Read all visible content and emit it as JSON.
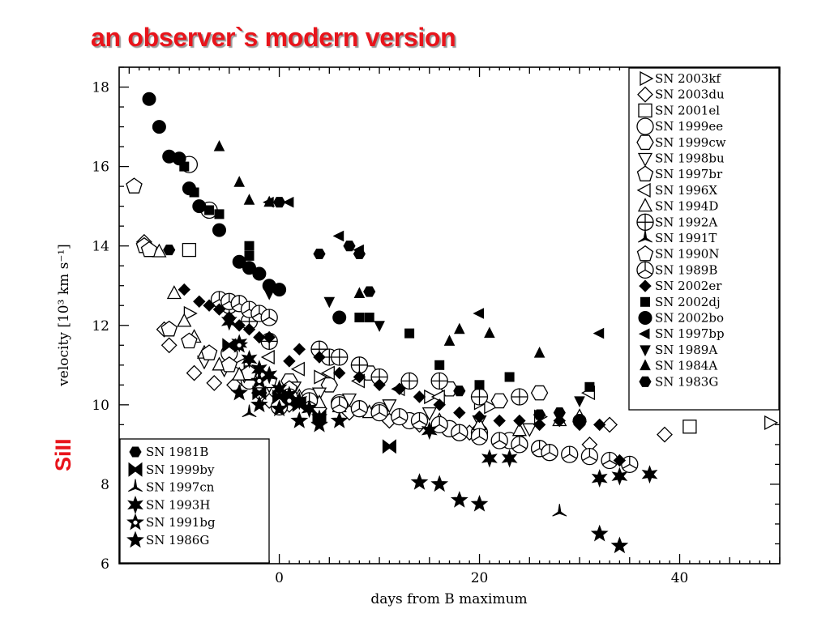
{
  "slide_title": "an observer`s modern version",
  "si_label": "SiII",
  "chart_data": {
    "type": "scatter",
    "xlabel": "days from B maximum",
    "ylabel": "velocity [10³ km s⁻¹]",
    "xlim": [
      -16,
      50
    ],
    "ylim": [
      6,
      18.5
    ],
    "x_ticks": [
      0,
      20,
      40
    ],
    "y_ticks": [
      6,
      8,
      10,
      12,
      14,
      16,
      18
    ],
    "grid": false,
    "legend_placement": [
      "top-right",
      "bottom-left"
    ],
    "series": [
      {
        "name": "SN 2003kf",
        "marker": "triangle-right-open",
        "legend": "right",
        "points": [
          [
            -9,
            12.3
          ],
          [
            4,
            10.7
          ],
          [
            15,
            10.2
          ],
          [
            20,
            10.05
          ],
          [
            21,
            9.95
          ],
          [
            26,
            9.7
          ],
          [
            49,
            9.55
          ]
        ]
      },
      {
        "name": "SN 2003du",
        "marker": "diamond-open",
        "legend": "right",
        "points": [
          [
            -13.5,
            14.1
          ],
          [
            -11.5,
            11.9
          ],
          [
            -11,
            11.5
          ],
          [
            -8.5,
            10.8
          ],
          [
            -6.5,
            10.55
          ],
          [
            -4.5,
            10.5
          ],
          [
            -2,
            10.3
          ],
          [
            -1,
            10.1
          ],
          [
            1,
            10.0
          ],
          [
            4,
            9.9
          ],
          [
            7,
            9.8
          ],
          [
            11,
            9.6
          ],
          [
            14,
            9.5
          ],
          [
            19,
            9.3
          ],
          [
            24,
            9.1
          ],
          [
            31,
            9.0
          ],
          [
            33,
            9.5
          ],
          [
            38.5,
            9.25
          ]
        ]
      },
      {
        "name": "SN 2001el",
        "marker": "square-open",
        "legend": "right",
        "points": [
          [
            -9,
            13.9
          ],
          [
            41,
            9.45
          ]
        ]
      },
      {
        "name": "SN 1999ee",
        "marker": "circle-open",
        "legend": "right",
        "points": [
          [
            -9,
            16.05
          ],
          [
            -7,
            14.9
          ],
          [
            -5,
            11.3
          ],
          [
            -3,
            10.6
          ],
          [
            0,
            9.95
          ],
          [
            3,
            10.2
          ],
          [
            6,
            10.05
          ],
          [
            10,
            9.85
          ],
          [
            13,
            9.6
          ],
          [
            17,
            9.4
          ],
          [
            20,
            9.3
          ],
          [
            23,
            9.1
          ],
          [
            26,
            8.9
          ]
        ]
      },
      {
        "name": "SN 1999cw",
        "marker": "hexagon-open",
        "legend": "right",
        "points": [
          [
            -3,
            10.8
          ],
          [
            1,
            10.6
          ],
          [
            5,
            10.5
          ],
          [
            9,
            10.8
          ],
          [
            13,
            10.6
          ],
          [
            17,
            10.4
          ],
          [
            22,
            10.1
          ],
          [
            26,
            10.3
          ]
        ]
      },
      {
        "name": "SN 1998bu",
        "marker": "triangle-down-open",
        "legend": "right",
        "points": [
          [
            -7.5,
            11.1
          ],
          [
            -5.5,
            10.9
          ],
          [
            -3.5,
            10.75
          ],
          [
            -1,
            10.5
          ],
          [
            1.5,
            10.45
          ],
          [
            4,
            10.3
          ],
          [
            7,
            10.15
          ],
          [
            11,
            10.0
          ],
          [
            15,
            9.8
          ],
          [
            20,
            9.6
          ],
          [
            25,
            9.4
          ]
        ]
      },
      {
        "name": "SN 1997br",
        "marker": "pentagon-open",
        "legend": "right",
        "points": [
          [
            -14.5,
            15.5
          ],
          [
            -13.5,
            14.0
          ]
        ]
      },
      {
        "name": "SN 1996X",
        "marker": "triangle-left-open",
        "legend": "right",
        "points": [
          [
            -4,
            11.0
          ],
          [
            -1,
            11.2
          ],
          [
            2,
            10.9
          ],
          [
            5,
            10.8
          ],
          [
            8,
            10.6
          ],
          [
            12,
            10.4
          ],
          [
            16,
            10.2
          ],
          [
            31,
            10.3
          ]
        ]
      },
      {
        "name": "SN 1994D",
        "marker": "triangle-up-open",
        "legend": "right",
        "points": [
          [
            -12,
            13.85
          ],
          [
            -10.5,
            12.8
          ],
          [
            -9.5,
            12.1
          ],
          [
            -8.5,
            11.7
          ],
          [
            -7.5,
            11.3
          ],
          [
            -6,
            11.0
          ],
          [
            -4,
            10.75
          ],
          [
            -2,
            10.55
          ],
          [
            0,
            10.35
          ],
          [
            2,
            10.2
          ],
          [
            4,
            10.05
          ],
          [
            6,
            9.95
          ],
          [
            9,
            9.8
          ],
          [
            12,
            9.7
          ],
          [
            16,
            9.6
          ],
          [
            20,
            9.5
          ],
          [
            24,
            9.35
          ],
          [
            28,
            9.6
          ],
          [
            30,
            9.7
          ]
        ]
      },
      {
        "name": "SN 1992A",
        "marker": "circle-plus",
        "legend": "right",
        "points": [
          [
            -5,
            12.5
          ],
          [
            -3,
            12.1
          ],
          [
            -1,
            11.6
          ],
          [
            4,
            11.4
          ],
          [
            5,
            11.2
          ],
          [
            6,
            11.2
          ],
          [
            8,
            11.0
          ],
          [
            10,
            10.7
          ],
          [
            13,
            10.6
          ],
          [
            16,
            10.6
          ],
          [
            20,
            10.2
          ],
          [
            24,
            10.2
          ]
        ]
      },
      {
        "name": "SN 1991T",
        "marker": "tri-star",
        "legend": "right",
        "points": [
          [
            -3,
            9.8
          ]
        ]
      },
      {
        "name": "SN 1990N",
        "marker": "pentagon-open",
        "legend": "right",
        "points": [
          [
            -13,
            13.9
          ],
          [
            -11,
            11.9
          ],
          [
            -9,
            11.6
          ],
          [
            -7,
            11.3
          ],
          [
            -5,
            11.0
          ],
          [
            -3,
            10.8
          ],
          [
            -1,
            10.6
          ],
          [
            1,
            10.4
          ]
        ]
      },
      {
        "name": "SN 1989B",
        "marker": "peace",
        "legend": "right",
        "points": [
          [
            -6,
            12.65
          ],
          [
            -5,
            12.6
          ],
          [
            -4,
            12.55
          ],
          [
            -3,
            12.4
          ],
          [
            -2,
            12.3
          ],
          [
            -1,
            12.2
          ],
          [
            1,
            10.2
          ],
          [
            3,
            10.1
          ],
          [
            6,
            10.0
          ],
          [
            8,
            9.9
          ],
          [
            10,
            9.8
          ],
          [
            12,
            9.7
          ],
          [
            14,
            9.6
          ],
          [
            16,
            9.5
          ],
          [
            18,
            9.3
          ],
          [
            20,
            9.2
          ],
          [
            22,
            9.1
          ],
          [
            24,
            9.0
          ],
          [
            26,
            8.9
          ],
          [
            27,
            8.8
          ],
          [
            29,
            8.75
          ],
          [
            31,
            8.7
          ],
          [
            33,
            8.6
          ],
          [
            35,
            8.5
          ]
        ]
      },
      {
        "name": "SN 2002er",
        "marker": "diamond-filled",
        "legend": "right",
        "points": [
          [
            -9.5,
            12.9
          ],
          [
            -8,
            12.6
          ],
          [
            -7,
            12.5
          ],
          [
            -6,
            12.4
          ],
          [
            -5,
            12.2
          ],
          [
            -4,
            12.0
          ],
          [
            -3,
            11.9
          ],
          [
            -2,
            11.7
          ],
          [
            -1,
            11.7
          ],
          [
            1,
            11.1
          ],
          [
            2,
            11.4
          ],
          [
            4,
            11.2
          ],
          [
            6,
            10.8
          ],
          [
            8,
            10.7
          ],
          [
            10,
            10.5
          ],
          [
            12,
            10.4
          ],
          [
            14,
            10.2
          ],
          [
            16,
            10.0
          ],
          [
            18,
            9.8
          ],
          [
            20,
            9.7
          ],
          [
            22,
            9.6
          ],
          [
            24,
            9.6
          ],
          [
            26,
            9.5
          ],
          [
            28,
            9.6
          ],
          [
            30,
            9.5
          ],
          [
            32,
            9.5
          ],
          [
            34,
            8.6
          ]
        ]
      },
      {
        "name": "SN 2002dj",
        "marker": "square-filled",
        "legend": "right",
        "points": [
          [
            -10,
            16.2
          ],
          [
            -9.5,
            16.0
          ],
          [
            -8.5,
            15.35
          ],
          [
            -7,
            14.9
          ],
          [
            -6,
            14.8
          ],
          [
            -3,
            14.0
          ],
          [
            -3,
            13.75
          ],
          [
            8,
            12.2
          ],
          [
            9,
            12.2
          ],
          [
            13,
            11.8
          ],
          [
            16,
            11.0
          ],
          [
            20,
            10.5
          ],
          [
            23,
            10.7
          ],
          [
            31,
            10.45
          ]
        ]
      },
      {
        "name": "SN 2002bo",
        "marker": "circle-filled",
        "legend": "right",
        "points": [
          [
            -13,
            17.7
          ],
          [
            -12,
            17.0
          ],
          [
            -11,
            16.25
          ],
          [
            -10,
            16.2
          ],
          [
            -9,
            15.45
          ],
          [
            -8,
            15.0
          ],
          [
            -6,
            14.4
          ],
          [
            -4,
            13.6
          ],
          [
            -3,
            13.45
          ],
          [
            -2,
            13.3
          ],
          [
            -1,
            13.0
          ],
          [
            0,
            12.9
          ],
          [
            6,
            12.2
          ],
          [
            30,
            9.6
          ]
        ]
      },
      {
        "name": "SN 1997bp",
        "marker": "triangle-left-filled",
        "legend": "right",
        "points": [
          [
            -1,
            15.1
          ],
          [
            1,
            15.1
          ],
          [
            6,
            14.25
          ],
          [
            8,
            13.9
          ],
          [
            20,
            12.3
          ],
          [
            32,
            11.8
          ]
        ]
      },
      {
        "name": "SN 1989A",
        "marker": "triangle-down-filled",
        "legend": "right",
        "points": [
          [
            -1,
            12.8
          ],
          [
            5,
            12.6
          ],
          [
            10,
            12.0
          ],
          [
            30,
            10.1
          ]
        ]
      },
      {
        "name": "SN 1984A",
        "marker": "triangle-up-filled",
        "legend": "right",
        "points": [
          [
            -6,
            16.5
          ],
          [
            -4,
            15.6
          ],
          [
            -3,
            15.15
          ],
          [
            -1,
            15.1
          ],
          [
            8,
            12.8
          ],
          [
            17,
            11.6
          ],
          [
            18,
            11.9
          ],
          [
            21,
            11.8
          ],
          [
            26,
            11.3
          ]
        ]
      },
      {
        "name": "SN 1983G",
        "marker": "hexagon-filled",
        "legend": "right",
        "points": [
          [
            0,
            15.1
          ],
          [
            4,
            13.8
          ],
          [
            7,
            14.0
          ],
          [
            8,
            13.8
          ],
          [
            9,
            12.85
          ],
          [
            18,
            10.35
          ],
          [
            26,
            9.75
          ],
          [
            28,
            9.8
          ]
        ]
      },
      {
        "name": "SN 1981B",
        "marker": "hexagon-filled",
        "legend": "left",
        "points": [
          [
            -11,
            13.9
          ],
          [
            -1,
            13.0
          ]
        ]
      },
      {
        "name": "SN 1999by",
        "marker": "bowtie",
        "legend": "left",
        "points": [
          [
            -5,
            11.5
          ],
          [
            -2,
            10.3
          ],
          [
            0,
            10.2
          ],
          [
            2,
            10.0
          ],
          [
            4,
            9.7
          ],
          [
            11,
            8.95
          ]
        ]
      },
      {
        "name": "SN 1997cn",
        "marker": "tri-star",
        "legend": "left",
        "points": [
          [
            28,
            7.3
          ]
        ]
      },
      {
        "name": "SN 1993H",
        "marker": "star6",
        "legend": "left",
        "points": [
          [
            -5,
            12.1
          ],
          [
            -4,
            11.55
          ],
          [
            -3,
            11.15
          ],
          [
            -2,
            10.9
          ],
          [
            -1,
            10.75
          ],
          [
            0,
            10.4
          ],
          [
            1,
            10.25
          ],
          [
            2,
            10.1
          ],
          [
            3,
            9.9
          ],
          [
            4,
            9.65
          ],
          [
            15,
            9.35
          ],
          [
            21,
            8.65
          ],
          [
            23,
            8.65
          ],
          [
            32,
            8.15
          ],
          [
            34,
            8.2
          ],
          [
            37,
            8.25
          ]
        ]
      },
      {
        "name": "SN 1991bg",
        "marker": "star-hollow",
        "legend": "left",
        "points": [
          [
            -4,
            11.5
          ],
          [
            -2,
            10.6
          ],
          [
            1,
            10.1
          ]
        ]
      },
      {
        "name": "SN 1986G",
        "marker": "star5",
        "legend": "left",
        "points": [
          [
            -4,
            10.3
          ],
          [
            -2,
            10.0
          ],
          [
            0,
            9.9
          ],
          [
            2,
            9.6
          ],
          [
            4,
            9.5
          ],
          [
            6,
            9.6
          ],
          [
            14,
            8.05
          ],
          [
            16,
            8.0
          ],
          [
            18,
            7.6
          ],
          [
            20,
            7.5
          ],
          [
            32,
            6.75
          ],
          [
            34,
            6.45
          ]
        ]
      }
    ]
  }
}
